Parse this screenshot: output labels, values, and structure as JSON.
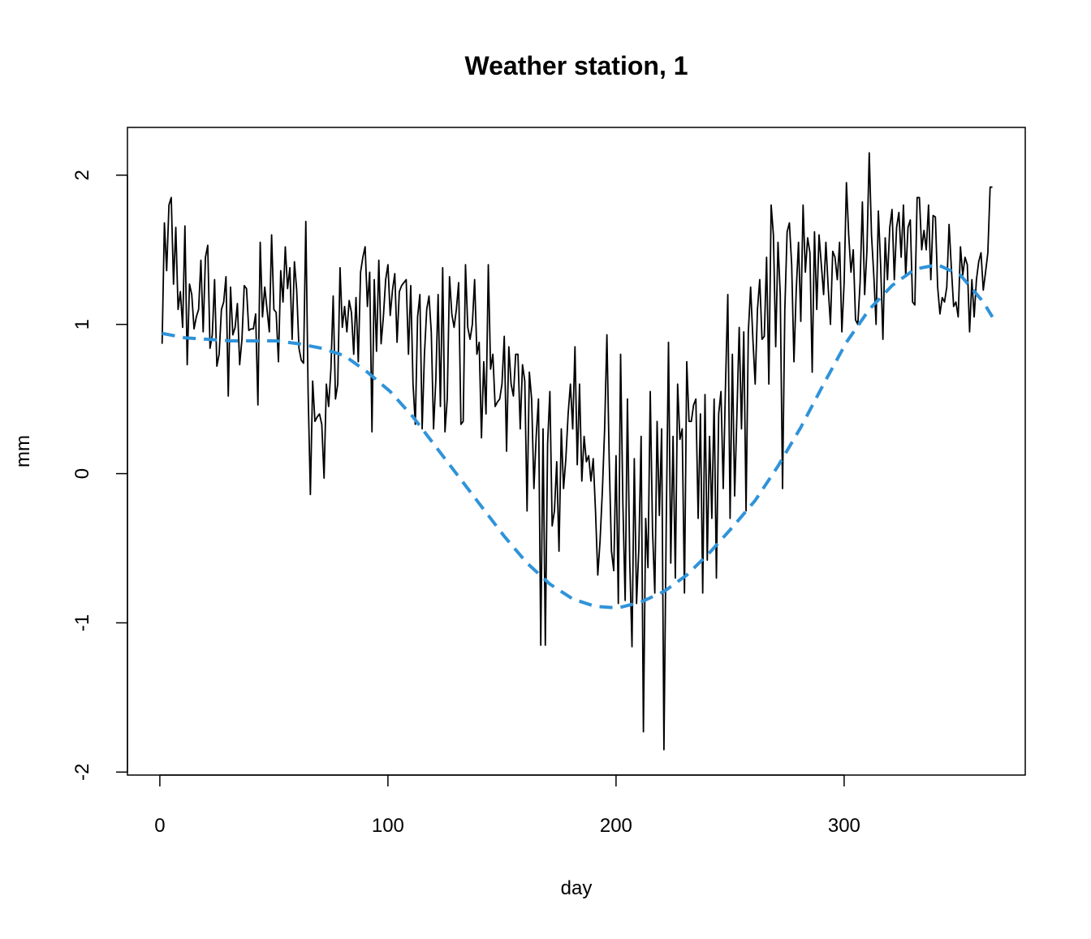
{
  "chart_data": {
    "type": "line",
    "title": "Weather station, 1",
    "xlabel": "day",
    "ylabel": "mm",
    "xlim": [
      -14.2,
      379.4
    ],
    "ylim": [
      -2.02,
      2.32
    ],
    "xticks": [
      0,
      100,
      200,
      300
    ],
    "yticks": [
      -2,
      -1,
      0,
      1,
      2
    ],
    "series": [
      {
        "color": "#000000",
        "linestyle": "solid",
        "x": [
          1,
          2,
          3,
          4,
          5,
          6,
          7,
          8,
          9,
          10,
          11,
          12,
          13,
          14,
          15,
          16,
          17,
          18,
          19,
          20,
          21,
          22,
          23,
          24,
          25,
          26,
          27,
          28,
          29,
          30,
          31,
          32,
          33,
          34,
          35,
          36,
          37,
          38,
          39,
          40,
          41,
          42,
          43,
          44,
          45,
          46,
          47,
          48,
          49,
          50,
          51,
          52,
          53,
          54,
          55,
          56,
          57,
          58,
          59,
          60,
          61,
          62,
          63,
          64,
          65,
          66,
          67,
          68,
          69,
          70,
          71,
          72,
          73,
          74,
          75,
          76,
          77,
          78,
          79,
          80,
          81,
          82,
          83,
          84,
          85,
          86,
          87,
          88,
          89,
          90,
          91,
          92,
          93,
          94,
          95,
          96,
          97,
          98,
          99,
          100,
          101,
          102,
          103,
          104,
          105,
          106,
          107,
          108,
          109,
          110,
          111,
          112,
          113,
          114,
          115,
          116,
          117,
          118,
          119,
          120,
          121,
          122,
          123,
          124,
          125,
          126,
          127,
          128,
          129,
          130,
          131,
          132,
          133,
          134,
          135,
          136,
          137,
          138,
          139,
          140,
          141,
          142,
          143,
          144,
          145,
          146,
          147,
          148,
          149,
          150,
          151,
          152,
          153,
          154,
          155,
          156,
          157,
          158,
          159,
          160,
          161,
          162,
          163,
          164,
          165,
          166,
          167,
          168,
          169,
          170,
          171,
          172,
          173,
          174,
          175,
          176,
          177,
          178,
          179,
          180,
          181,
          182,
          183,
          184,
          185,
          186,
          187,
          188,
          189,
          190,
          191,
          192,
          193,
          194,
          195,
          196,
          197,
          198,
          199,
          200,
          201,
          202,
          203,
          204,
          205,
          206,
          207,
          208,
          209,
          210,
          211,
          212,
          213,
          214,
          215,
          216,
          217,
          218,
          219,
          220,
          221,
          222,
          223,
          224,
          225,
          226,
          227,
          228,
          229,
          230,
          231,
          232,
          233,
          234,
          235,
          236,
          237,
          238,
          239,
          240,
          241,
          242,
          243,
          244,
          245,
          246,
          247,
          248,
          249,
          250,
          251,
          252,
          253,
          254,
          255,
          256,
          257,
          258,
          259,
          260,
          261,
          262,
          263,
          264,
          265,
          266,
          267,
          268,
          269,
          270,
          271,
          272,
          273,
          274,
          275,
          276,
          277,
          278,
          279,
          280,
          281,
          282,
          283,
          284,
          285,
          286,
          287,
          288,
          289,
          290,
          291,
          292,
          293,
          294,
          295,
          296,
          297,
          298,
          299,
          300,
          301,
          302,
          303,
          304,
          305,
          306,
          307,
          308,
          309,
          310,
          311,
          312,
          313,
          314,
          315,
          316,
          317,
          318,
          319,
          320,
          321,
          322,
          323,
          324,
          325,
          326,
          327,
          328,
          329,
          330,
          331,
          332,
          333,
          334,
          335,
          336,
          337,
          338,
          339,
          340,
          341,
          342,
          343,
          344,
          345,
          346,
          347,
          348,
          349,
          350,
          351,
          352,
          353,
          354,
          355,
          356,
          357,
          358,
          359,
          360,
          361,
          362,
          363,
          364,
          365
        ],
        "values": [
          0.87,
          1.68,
          1.36,
          1.8,
          1.85,
          1.27,
          1.65,
          1.1,
          1.22,
          0.98,
          1.66,
          0.73,
          1.27,
          1.2,
          0.97,
          1.05,
          1.1,
          1.43,
          0.95,
          1.45,
          1.53,
          0.84,
          0.93,
          1.3,
          0.72,
          0.8,
          1.1,
          1.15,
          1.32,
          0.52,
          1.25,
          0.93,
          0.98,
          1.14,
          0.73,
          0.9,
          1.26,
          1.24,
          0.96,
          0.97,
          0.97,
          1.07,
          0.46,
          1.55,
          1.05,
          1.25,
          1.1,
          0.95,
          1.6,
          1.1,
          1.08,
          0.75,
          1.36,
          1.15,
          1.52,
          1.24,
          1.38,
          0.9,
          1.42,
          1.23,
          0.84,
          0.76,
          0.74,
          1.69,
          0.55,
          -0.14,
          0.62,
          0.35,
          0.38,
          0.4,
          0.33,
          -0.03,
          0.6,
          0.45,
          0.7,
          1.19,
          0.5,
          0.6,
          1.38,
          0.98,
          1.12,
          0.95,
          1.16,
          1.08,
          0.8,
          1.18,
          0.75,
          1.35,
          1.45,
          1.52,
          1.12,
          1.35,
          0.28,
          1.3,
          0.82,
          1.43,
          0.87,
          1.05,
          1.3,
          1.4,
          1.06,
          1.23,
          1.34,
          0.88,
          1.22,
          1.26,
          1.28,
          1.3,
          0.8,
          1.26,
          0.6,
          0.33,
          1.05,
          1.2,
          0.3,
          0.8,
          1.1,
          1.19,
          0.95,
          0.3,
          0.63,
          1.2,
          0.45,
          1.38,
          0.28,
          0.5,
          1.32,
          1.07,
          0.98,
          1.1,
          1.28,
          0.33,
          0.35,
          1.4,
          0.98,
          0.9,
          1.0,
          1.3,
          0.8,
          0.88,
          0.24,
          0.75,
          0.4,
          1.4,
          0.7,
          0.8,
          0.45,
          0.48,
          0.5,
          0.6,
          0.92,
          0.15,
          0.85,
          0.6,
          0.52,
          0.8,
          0.8,
          0.3,
          0.73,
          0.62,
          -0.25,
          0.68,
          0.5,
          -0.1,
          0.25,
          0.5,
          -1.15,
          0.3,
          -1.15,
          0.2,
          0.55,
          -0.35,
          -0.25,
          0.08,
          -0.52,
          0.3,
          -0.1,
          0.1,
          0.4,
          0.6,
          0.3,
          0.85,
          0.06,
          0.6,
          -0.05,
          0.25,
          0.08,
          0.12,
          -0.05,
          0.1,
          -0.25,
          -0.68,
          -0.45,
          -0.12,
          0.3,
          0.93,
          0.1,
          -0.52,
          -0.65,
          0.12,
          -0.87,
          0.8,
          -0.2,
          -0.85,
          0.5,
          -0.58,
          -1.16,
          0.1,
          -0.87,
          -0.5,
          0.25,
          -1.73,
          -0.3,
          -0.63,
          0.55,
          -0.38,
          -0.8,
          0.35,
          -0.28,
          0.3,
          -1.85,
          -0.35,
          0.88,
          -0.6,
          0.25,
          -0.7,
          0.6,
          0.23,
          0.3,
          -0.8,
          0.75,
          0.35,
          0.35,
          0.46,
          0.5,
          -0.3,
          0.4,
          -0.8,
          0.53,
          -0.58,
          0.25,
          -0.3,
          0.5,
          -0.7,
          0.4,
          0.55,
          -0.1,
          0.6,
          1.2,
          -0.3,
          0.8,
          -0.15,
          0.4,
          0.98,
          0.3,
          0.95,
          -0.25,
          0.95,
          1.25,
          0.9,
          0.6,
          1.1,
          1.3,
          0.9,
          0.92,
          1.45,
          0.6,
          1.8,
          1.6,
          0.85,
          1.55,
          1.2,
          -0.1,
          1.1,
          1.62,
          1.68,
          1.4,
          0.75,
          1.23,
          1.55,
          1.02,
          1.8,
          1.35,
          1.58,
          1.48,
          0.68,
          1.62,
          1.1,
          1.6,
          1.4,
          1.2,
          1.55,
          1.25,
          1.0,
          1.49,
          1.45,
          1.3,
          1.55,
          0.95,
          1.28,
          1.95,
          1.6,
          1.35,
          1.5,
          1.03,
          1.0,
          1.28,
          1.82,
          1.2,
          1.5,
          2.15,
          1.6,
          1.33,
          1.0,
          1.76,
          1.4,
          0.9,
          1.58,
          1.3,
          1.65,
          1.77,
          1.3,
          1.65,
          1.75,
          1.45,
          1.8,
          1.32,
          1.65,
          1.7,
          1.15,
          1.13,
          1.85,
          1.85,
          1.5,
          1.63,
          1.5,
          1.8,
          1.3,
          1.73,
          1.72,
          1.25,
          1.07,
          1.18,
          1.15,
          1.25,
          1.67,
          1.38,
          1.12,
          1.15,
          1.05,
          1.52,
          1.33,
          1.45,
          1.4,
          0.95,
          1.3,
          1.05,
          1.3,
          1.42,
          1.48,
          1.23,
          1.35,
          1.48,
          1.92,
          1.92
        ]
      },
      {
        "color": "#2f93d9",
        "linestyle": "dashed",
        "x": [
          1,
          11,
          21,
          31,
          41,
          51,
          61,
          71,
          81,
          91,
          101,
          111,
          121,
          131,
          141,
          151,
          161,
          171,
          181,
          191,
          201,
          211,
          221,
          231,
          241,
          251,
          261,
          271,
          281,
          291,
          301,
          311,
          321,
          331,
          341,
          351,
          361,
          365
        ],
        "values": [
          0.94,
          0.91,
          0.9,
          0.89,
          0.89,
          0.89,
          0.87,
          0.84,
          0.79,
          0.68,
          0.55,
          0.38,
          0.18,
          -0.02,
          -0.22,
          -0.42,
          -0.6,
          -0.74,
          -0.84,
          -0.89,
          -0.9,
          -0.86,
          -0.79,
          -0.68,
          -0.53,
          -0.36,
          -0.18,
          0.05,
          0.31,
          0.6,
          0.88,
          1.1,
          1.26,
          1.37,
          1.4,
          1.33,
          1.15,
          1.05
        ]
      }
    ]
  }
}
